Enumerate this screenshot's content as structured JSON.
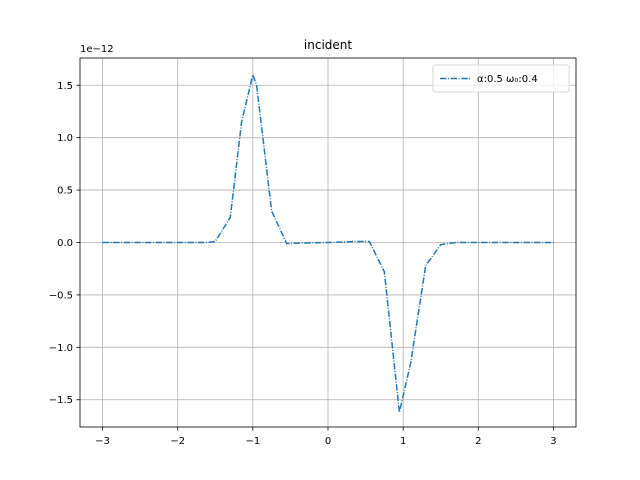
{
  "chart_data": {
    "type": "line",
    "title": "incident",
    "xlabel": "",
    "ylabel": "",
    "y_offset_text": "1e−12",
    "xlim": [
      -3.3,
      3.3
    ],
    "ylim": [
      -1.76,
      1.76
    ],
    "xticks": [
      -3,
      -2,
      -1,
      0,
      1,
      2,
      3
    ],
    "xtick_labels": [
      "−3",
      "−2",
      "−1",
      "0",
      "1",
      "2",
      "3"
    ],
    "yticks": [
      -1.5,
      -1.0,
      -0.5,
      0.0,
      0.5,
      1.0,
      1.5
    ],
    "ytick_labels": [
      "−1.5",
      "−1.0",
      "−0.5",
      "0.0",
      "0.5",
      "1.0",
      "1.5"
    ],
    "grid": true,
    "legend_position": "top-right",
    "series": [
      {
        "name": "α:0.5 ω₀:0.4",
        "color": "#1f77b4",
        "linestyle": "dashdot",
        "x": [
          -3.0,
          -2.8,
          -2.6,
          -2.4,
          -2.2,
          -2.0,
          -1.8,
          -1.6,
          -1.5,
          -1.3,
          -1.15,
          -1.0,
          -0.95,
          -0.75,
          -0.55,
          -0.35,
          0.0,
          0.2,
          0.4,
          0.55,
          0.75,
          0.95,
          1.1,
          1.3,
          1.5,
          1.7,
          1.9,
          2.1,
          2.3,
          2.5,
          2.7,
          3.0
        ],
        "y": [
          0.0,
          0.0,
          0.0,
          0.0,
          0.0,
          0.0,
          0.0,
          0.0,
          0.01,
          0.24,
          1.15,
          1.6,
          1.5,
          0.3,
          -0.01,
          -0.005,
          0.0,
          0.005,
          0.01,
          0.01,
          -0.28,
          -1.62,
          -1.15,
          -0.22,
          -0.02,
          0.0,
          0.0,
          0.0,
          0.0,
          0.0,
          0.0,
          0.0
        ]
      }
    ]
  }
}
